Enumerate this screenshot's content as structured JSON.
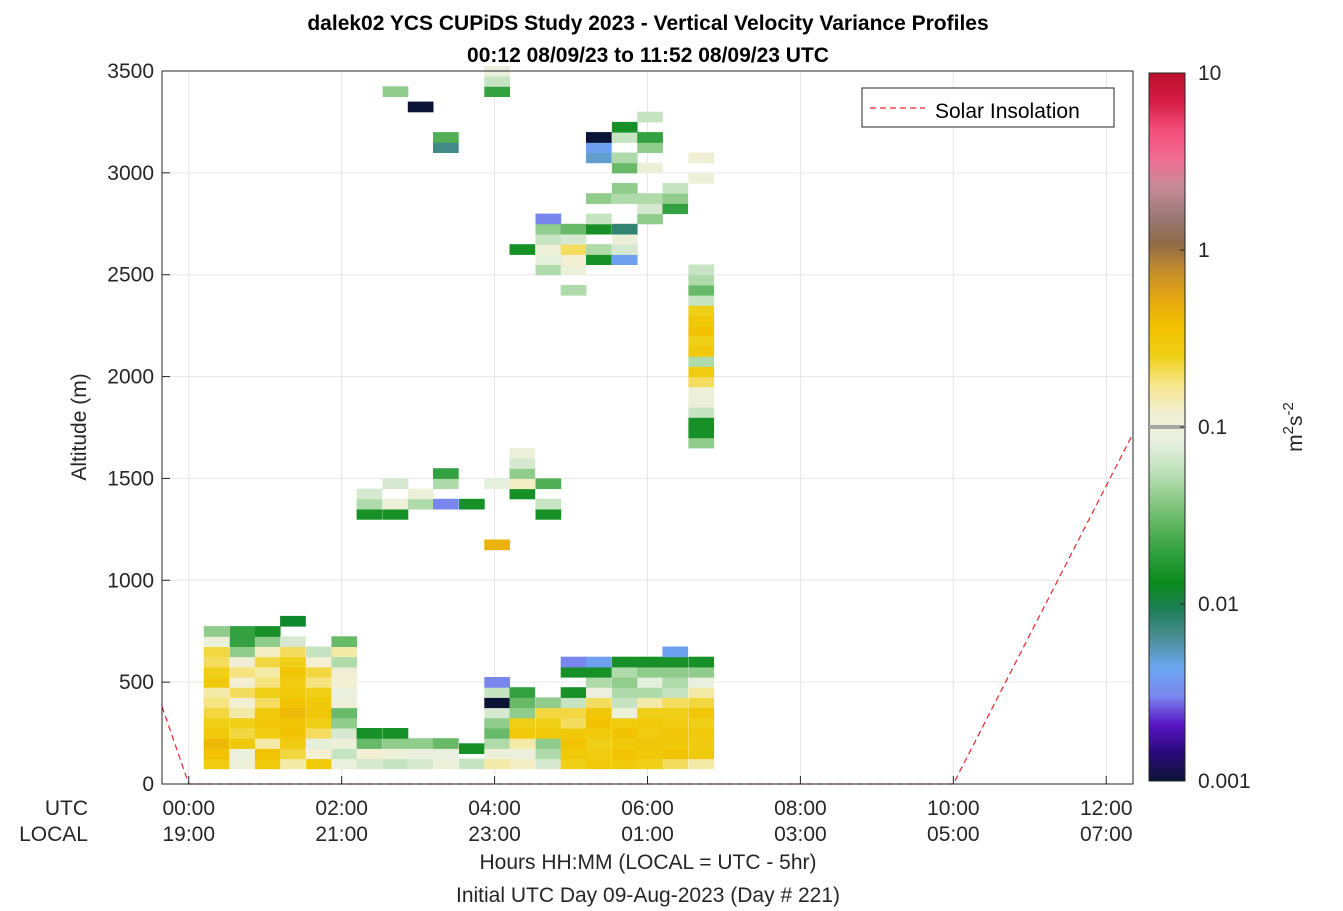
{
  "chart_data": {
    "type": "heatmap",
    "title": "dalek02 YCS CUPiDS Study 2023 - Vertical Velocity Variance Profiles",
    "subtitle": "00:12 08/09/23 to 11:52 08/09/23  UTC",
    "ylabel": "Altitude (m)",
    "xlabel": "Hours HH:MM  (LOCAL = UTC - 5hr)",
    "xlabel2": "Initial UTC Day 09-Aug-2023 (Day # 221)",
    "xlim": [
      -0.35,
      12.35
    ],
    "ylim": [
      0,
      3500
    ],
    "grid": true,
    "utc_row_label": "UTC",
    "local_row_label": "LOCAL",
    "x_ticks": [
      {
        "value": 0,
        "utc": "00:00",
        "local": "19:00"
      },
      {
        "value": 2,
        "utc": "02:00",
        "local": "21:00"
      },
      {
        "value": 4,
        "utc": "04:00",
        "local": "23:00"
      },
      {
        "value": 6,
        "utc": "06:00",
        "local": "01:00"
      },
      {
        "value": 8,
        "utc": "08:00",
        "local": "03:00"
      },
      {
        "value": 10,
        "utc": "10:00",
        "local": "05:00"
      },
      {
        "value": 12,
        "utc": "12:00",
        "local": "07:00"
      }
    ],
    "y_ticks": [
      0,
      500,
      1000,
      1500,
      2000,
      2500,
      3000,
      3500
    ],
    "colorbar": {
      "label_base": "m",
      "label_sup1": "2",
      "label_mid": "s",
      "label_sup2": "-2",
      "scale": "log",
      "range": [
        0.001,
        10
      ],
      "ticks": [
        {
          "value": 0.001,
          "label": "0.001"
        },
        {
          "value": 0.01,
          "label": "0.01"
        },
        {
          "value": 0.1,
          "label": "0.1"
        },
        {
          "value": 1,
          "label": "1"
        },
        {
          "value": 10,
          "label": "10"
        }
      ],
      "colormap": [
        "#0b1436",
        "#2a0a7a",
        "#5a17c4",
        "#7a88ee",
        "#6aa7f0",
        "#4e8e9a",
        "#1f7f5a",
        "#0a8a1c",
        "#2e9e3c",
        "#5cb45e",
        "#8fcc8a",
        "#c2e2bd",
        "#e8f0e0",
        "#f2efd2",
        "#f6e68a",
        "#f0cf16",
        "#f2c200",
        "#e6a810",
        "#c58d2c",
        "#8e6a48",
        "#9d7a7a",
        "#c98b98",
        "#f26b92",
        "#f24e7a",
        "#d61c45",
        "#b8102a"
      ],
      "marker_value": 0.1
    },
    "legend": {
      "label": "Solar Insolation",
      "position": "top-right",
      "line_color": "#e8262b",
      "line_style": "dashed"
    },
    "series": [
      {
        "name": "Solar Insolation",
        "x": [
          -0.35,
          0,
          10,
          12.35
        ],
        "y": [
          380,
          0,
          0,
          1720
        ]
      }
    ],
    "cell_height_m": 50,
    "cells": [
      [
        0.36,
        100,
        0.28
      ],
      [
        0.36,
        150,
        0.35
      ],
      [
        0.36,
        200,
        0.42
      ],
      [
        0.36,
        250,
        0.3
      ],
      [
        0.36,
        300,
        0.25
      ],
      [
        0.36,
        350,
        0.22
      ],
      [
        0.36,
        400,
        0.18
      ],
      [
        0.36,
        450,
        0.15
      ],
      [
        0.36,
        500,
        0.3
      ],
      [
        0.36,
        550,
        0.25
      ],
      [
        0.36,
        600,
        0.2
      ],
      [
        0.36,
        650,
        0.22
      ],
      [
        0.36,
        700,
        0.1
      ],
      [
        0.36,
        750,
        0.04
      ],
      [
        0.7,
        100,
        0.1
      ],
      [
        0.7,
        150,
        0.09
      ],
      [
        0.7,
        200,
        0.3
      ],
      [
        0.7,
        250,
        0.22
      ],
      [
        0.7,
        300,
        0.25
      ],
      [
        0.7,
        350,
        0.15
      ],
      [
        0.7,
        400,
        0.12
      ],
      [
        0.7,
        450,
        0.2
      ],
      [
        0.7,
        500,
        0.12
      ],
      [
        0.7,
        550,
        0.18
      ],
      [
        0.7,
        600,
        0.11
      ],
      [
        0.7,
        650,
        0.04
      ],
      [
        0.7,
        700,
        0.02
      ],
      [
        0.7,
        750,
        0.02
      ],
      [
        1.03,
        100,
        0.3
      ],
      [
        1.03,
        150,
        0.35
      ],
      [
        1.03,
        200,
        0.15
      ],
      [
        1.03,
        250,
        0.28
      ],
      [
        1.03,
        300,
        0.32
      ],
      [
        1.03,
        350,
        0.3
      ],
      [
        1.03,
        400,
        0.2
      ],
      [
        1.03,
        450,
        0.25
      ],
      [
        1.03,
        500,
        0.18
      ],
      [
        1.03,
        550,
        0.15
      ],
      [
        1.03,
        600,
        0.22
      ],
      [
        1.03,
        650,
        0.13
      ],
      [
        1.03,
        700,
        0.04
      ],
      [
        1.03,
        750,
        0.015
      ],
      [
        1.36,
        100,
        0.15
      ],
      [
        1.36,
        150,
        0.22
      ],
      [
        1.36,
        200,
        0.28
      ],
      [
        1.36,
        250,
        0.35
      ],
      [
        1.36,
        300,
        0.33
      ],
      [
        1.36,
        350,
        0.42
      ],
      [
        1.36,
        400,
        0.35
      ],
      [
        1.36,
        450,
        0.3
      ],
      [
        1.36,
        500,
        0.28
      ],
      [
        1.36,
        550,
        0.33
      ],
      [
        1.36,
        600,
        0.25
      ],
      [
        1.36,
        650,
        0.2
      ],
      [
        1.36,
        700,
        0.07
      ],
      [
        1.36,
        800,
        0.012
      ],
      [
        1.7,
        100,
        0.3
      ],
      [
        1.7,
        150,
        0.12
      ],
      [
        1.7,
        200,
        0.08
      ],
      [
        1.7,
        250,
        0.2
      ],
      [
        1.7,
        300,
        0.25
      ],
      [
        1.7,
        350,
        0.32
      ],
      [
        1.7,
        400,
        0.3
      ],
      [
        1.7,
        450,
        0.25
      ],
      [
        1.7,
        500,
        0.18
      ],
      [
        1.7,
        550,
        0.22
      ],
      [
        1.7,
        600,
        0.12
      ],
      [
        1.7,
        650,
        0.06
      ],
      [
        2.03,
        100,
        0.09
      ],
      [
        2.03,
        150,
        0.06
      ],
      [
        2.03,
        200,
        0.1
      ],
      [
        2.03,
        250,
        0.07
      ],
      [
        2.03,
        300,
        0.04
      ],
      [
        2.03,
        350,
        0.03
      ],
      [
        2.03,
        400,
        0.1
      ],
      [
        2.03,
        450,
        0.09
      ],
      [
        2.03,
        500,
        0.12
      ],
      [
        2.03,
        550,
        0.11
      ],
      [
        2.03,
        600,
        0.05
      ],
      [
        2.03,
        650,
        0.15
      ],
      [
        2.03,
        700,
        0.03
      ],
      [
        2.36,
        100,
        0.07
      ],
      [
        2.36,
        150,
        0.12
      ],
      [
        2.36,
        200,
        0.03
      ],
      [
        2.36,
        250,
        0.015
      ],
      [
        2.36,
        1325,
        0.015
      ],
      [
        2.36,
        1375,
        0.05
      ],
      [
        2.36,
        1425,
        0.07
      ],
      [
        2.7,
        100,
        0.06
      ],
      [
        2.7,
        150,
        0.1
      ],
      [
        2.7,
        200,
        0.04
      ],
      [
        2.7,
        250,
        0.015
      ],
      [
        2.7,
        1325,
        0.015
      ],
      [
        2.7,
        1375,
        0.1
      ],
      [
        2.7,
        1475,
        0.07
      ],
      [
        2.7,
        3400,
        0.04
      ],
      [
        3.03,
        100,
        0.07
      ],
      [
        3.03,
        150,
        0.09
      ],
      [
        3.03,
        200,
        0.04
      ],
      [
        3.03,
        1375,
        0.05
      ],
      [
        3.03,
        1425,
        0.1
      ],
      [
        3.03,
        3325,
        0.001
      ],
      [
        3.36,
        100,
        0.1
      ],
      [
        3.36,
        150,
        0.09
      ],
      [
        3.36,
        200,
        0.03
      ],
      [
        3.36,
        1375,
        0.003
      ],
      [
        3.36,
        1475,
        0.05
      ],
      [
        3.36,
        1525,
        0.02
      ],
      [
        3.36,
        3125,
        0.007
      ],
      [
        3.36,
        3175,
        0.025
      ],
      [
        3.7,
        100,
        0.06
      ],
      [
        3.7,
        175,
        0.015
      ],
      [
        3.7,
        1375,
        0.015
      ],
      [
        4.03,
        100,
        0.15
      ],
      [
        4.03,
        150,
        0.1
      ],
      [
        4.03,
        200,
        0.05
      ],
      [
        4.03,
        250,
        0.03
      ],
      [
        4.03,
        300,
        0.04
      ],
      [
        4.03,
        350,
        0.07
      ],
      [
        4.03,
        400,
        0.001
      ],
      [
        4.03,
        450,
        0.06
      ],
      [
        4.03,
        500,
        0.003
      ],
      [
        4.03,
        1175,
        0.45
      ],
      [
        4.03,
        1475,
        0.08
      ],
      [
        4.03,
        3400,
        0.02
      ],
      [
        4.03,
        3450,
        0.06
      ],
      [
        4.03,
        3500,
        0.09
      ],
      [
        4.36,
        100,
        0.13
      ],
      [
        4.36,
        150,
        0.09
      ],
      [
        4.36,
        200,
        0.15
      ],
      [
        4.36,
        250,
        0.3
      ],
      [
        4.36,
        300,
        0.25
      ],
      [
        4.36,
        350,
        0.04
      ],
      [
        4.36,
        400,
        0.03
      ],
      [
        4.36,
        450,
        0.02
      ],
      [
        4.36,
        1425,
        0.015
      ],
      [
        4.36,
        1475,
        0.13
      ],
      [
        4.36,
        1525,
        0.04
      ],
      [
        4.36,
        1575,
        0.07
      ],
      [
        4.36,
        1625,
        0.1
      ],
      [
        4.36,
        2625,
        0.015
      ],
      [
        4.7,
        100,
        0.07
      ],
      [
        4.7,
        150,
        0.05
      ],
      [
        4.7,
        200,
        0.04
      ],
      [
        4.7,
        250,
        0.3
      ],
      [
        4.7,
        300,
        0.25
      ],
      [
        4.7,
        350,
        0.22
      ],
      [
        4.7,
        400,
        0.04
      ],
      [
        4.7,
        1325,
        0.015
      ],
      [
        4.7,
        1375,
        0.06
      ],
      [
        4.7,
        1475,
        0.025
      ],
      [
        4.7,
        2525,
        0.05
      ],
      [
        4.7,
        2575,
        0.08
      ],
      [
        4.7,
        2625,
        0.1
      ],
      [
        4.7,
        2675,
        0.06
      ],
      [
        4.7,
        2725,
        0.04
      ],
      [
        4.7,
        2775,
        0.003
      ],
      [
        5.03,
        100,
        0.25
      ],
      [
        5.03,
        150,
        0.3
      ],
      [
        5.03,
        200,
        0.35
      ],
      [
        5.03,
        250,
        0.3
      ],
      [
        5.03,
        300,
        0.2
      ],
      [
        5.03,
        350,
        0.22
      ],
      [
        5.03,
        400,
        0.06
      ],
      [
        5.03,
        450,
        0.015
      ],
      [
        5.03,
        550,
        0.015
      ],
      [
        5.03,
        600,
        0.003
      ],
      [
        5.03,
        2425,
        0.05
      ],
      [
        5.03,
        2525,
        0.1
      ],
      [
        5.03,
        2575,
        0.12
      ],
      [
        5.03,
        2625,
        0.2
      ],
      [
        5.03,
        2675,
        0.07
      ],
      [
        5.03,
        2725,
        0.03
      ],
      [
        5.36,
        100,
        0.3
      ],
      [
        5.36,
        150,
        0.28
      ],
      [
        5.36,
        200,
        0.25
      ],
      [
        5.36,
        250,
        0.3
      ],
      [
        5.36,
        300,
        0.35
      ],
      [
        5.36,
        350,
        0.32
      ],
      [
        5.36,
        400,
        0.2
      ],
      [
        5.36,
        450,
        0.09
      ],
      [
        5.36,
        500,
        0.05
      ],
      [
        5.36,
        550,
        0.015
      ],
      [
        5.36,
        600,
        0.004
      ],
      [
        5.36,
        2575,
        0.015
      ],
      [
        5.36,
        2625,
        0.05
      ],
      [
        5.36,
        2725,
        0.015
      ],
      [
        5.36,
        2775,
        0.06
      ],
      [
        5.36,
        2875,
        0.04
      ],
      [
        5.36,
        3075,
        0.005
      ],
      [
        5.36,
        3125,
        0.004
      ],
      [
        5.36,
        3175,
        0.001
      ],
      [
        5.7,
        100,
        0.3
      ],
      [
        5.7,
        150,
        0.35
      ],
      [
        5.7,
        200,
        0.3
      ],
      [
        5.7,
        250,
        0.35
      ],
      [
        5.7,
        300,
        0.28
      ],
      [
        5.7,
        350,
        0.1
      ],
      [
        5.7,
        400,
        0.06
      ],
      [
        5.7,
        450,
        0.05
      ],
      [
        5.7,
        500,
        0.04
      ],
      [
        5.7,
        550,
        0.05
      ],
      [
        5.7,
        600,
        0.015
      ],
      [
        5.7,
        2575,
        0.004
      ],
      [
        5.7,
        2625,
        0.07
      ],
      [
        5.7,
        2675,
        0.1
      ],
      [
        5.7,
        2725,
        0.008
      ],
      [
        5.7,
        2875,
        0.05
      ],
      [
        5.7,
        2925,
        0.04
      ],
      [
        5.7,
        3025,
        0.03
      ],
      [
        5.7,
        3075,
        0.05
      ],
      [
        5.7,
        3175,
        0.06
      ],
      [
        5.7,
        3225,
        0.015
      ],
      [
        6.03,
        100,
        0.25
      ],
      [
        6.03,
        150,
        0.3
      ],
      [
        6.03,
        200,
        0.32
      ],
      [
        6.03,
        250,
        0.28
      ],
      [
        6.03,
        300,
        0.3
      ],
      [
        6.03,
        350,
        0.25
      ],
      [
        6.03,
        400,
        0.15
      ],
      [
        6.03,
        450,
        0.05
      ],
      [
        6.03,
        500,
        0.08
      ],
      [
        6.03,
        550,
        0.04
      ],
      [
        6.03,
        600,
        0.015
      ],
      [
        6.03,
        2775,
        0.04
      ],
      [
        6.03,
        2825,
        0.07
      ],
      [
        6.03,
        2875,
        0.05
      ],
      [
        6.03,
        3025,
        0.1
      ],
      [
        6.03,
        3125,
        0.04
      ],
      [
        6.03,
        3175,
        0.02
      ],
      [
        6.03,
        3275,
        0.06
      ],
      [
        6.36,
        100,
        0.2
      ],
      [
        6.36,
        150,
        0.35
      ],
      [
        6.36,
        200,
        0.3
      ],
      [
        6.36,
        250,
        0.32
      ],
      [
        6.36,
        300,
        0.28
      ],
      [
        6.36,
        350,
        0.25
      ],
      [
        6.36,
        400,
        0.2
      ],
      [
        6.36,
        450,
        0.06
      ],
      [
        6.36,
        500,
        0.05
      ],
      [
        6.36,
        550,
        0.04
      ],
      [
        6.36,
        600,
        0.015
      ],
      [
        6.36,
        650,
        0.004
      ],
      [
        6.36,
        2825,
        0.02
      ],
      [
        6.36,
        2875,
        0.04
      ],
      [
        6.36,
        2925,
        0.06
      ],
      [
        6.7,
        100,
        0.15
      ],
      [
        6.7,
        150,
        0.3
      ],
      [
        6.7,
        200,
        0.28
      ],
      [
        6.7,
        250,
        0.3
      ],
      [
        6.7,
        300,
        0.25
      ],
      [
        6.7,
        350,
        0.32
      ],
      [
        6.7,
        400,
        0.22
      ],
      [
        6.7,
        450,
        0.15
      ],
      [
        6.7,
        500,
        0.09
      ],
      [
        6.7,
        550,
        0.04
      ],
      [
        6.7,
        600,
        0.015
      ],
      [
        6.7,
        1675,
        0.04
      ],
      [
        6.7,
        1725,
        0.015
      ],
      [
        6.7,
        1775,
        0.015
      ],
      [
        6.7,
        1825,
        0.06
      ],
      [
        6.7,
        1875,
        0.1
      ],
      [
        6.7,
        1925,
        0.1
      ],
      [
        6.7,
        1975,
        0.2
      ],
      [
        6.7,
        2025,
        0.28
      ],
      [
        6.7,
        2075,
        0.05
      ],
      [
        6.7,
        2125,
        0.3
      ],
      [
        6.7,
        2175,
        0.25
      ],
      [
        6.7,
        2225,
        0.35
      ],
      [
        6.7,
        2275,
        0.3
      ],
      [
        6.7,
        2325,
        0.25
      ],
      [
        6.7,
        2375,
        0.06
      ],
      [
        6.7,
        2425,
        0.03
      ],
      [
        6.7,
        2475,
        0.05
      ],
      [
        6.7,
        2525,
        0.06
      ],
      [
        6.7,
        2975,
        0.1
      ],
      [
        6.7,
        3075,
        0.11
      ]
    ]
  }
}
